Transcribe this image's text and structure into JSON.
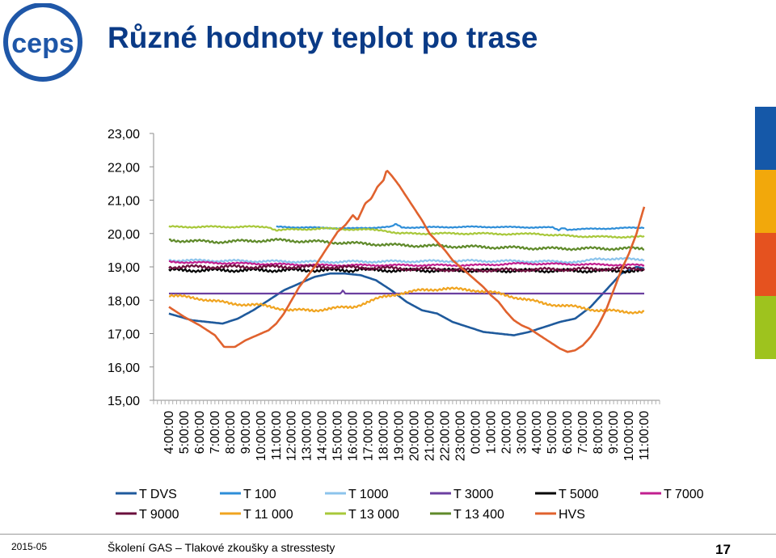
{
  "header": {
    "logo_text": "ceps",
    "title": "Různé hodnoty teplot po trase"
  },
  "footer": {
    "date": "2015-05",
    "course": "Školení GAS – Tlakové zkoušky a stresstesty",
    "page_number": "17"
  },
  "colors": {
    "title": "#0a3a86",
    "logo": "#1f57a8",
    "right_bar": [
      "#1558a8",
      "#f2a80b",
      "#e5521f",
      "#9ec31e"
    ]
  },
  "chart_data": {
    "type": "line",
    "ylim": [
      15,
      23
    ],
    "ytick_labels": [
      "15,00",
      "16,00",
      "17,00",
      "18,00",
      "19,00",
      "20,00",
      "21,00",
      "22,00",
      "23,00"
    ],
    "xtick_labels": [
      "4:00:00",
      "5:00:00",
      "6:00:00",
      "7:00:00",
      "8:00:00",
      "9:00:00",
      "10:00:00",
      "11:00:00",
      "12:00:00",
      "13:00:00",
      "14:00:00",
      "15:00:00",
      "16:00:00",
      "17:00:00",
      "18:00:00",
      "19:00:00",
      "20:00:00",
      "21:00:00",
      "22:00:00",
      "23:00:00",
      "0:00:00",
      "1:00:00",
      "2:00:00",
      "3:00:00",
      "4:00:00",
      "5:00:00",
      "6:00:00",
      "7:00:00",
      "8:00:00",
      "9:00:00",
      "10:00:00",
      "11:00:00"
    ],
    "grid": false,
    "legend_position": "bottom",
    "series": [
      {
        "name": "T DVS",
        "color": "#1f5a9c",
        "noise": 0.0,
        "points": [
          [
            0,
            17.6
          ],
          [
            1.5,
            17.4
          ],
          [
            2.5,
            17.35
          ],
          [
            3.5,
            17.3
          ],
          [
            4.5,
            17.45
          ],
          [
            5.5,
            17.7
          ],
          [
            6.5,
            18.0
          ],
          [
            7.5,
            18.3
          ],
          [
            8.5,
            18.5
          ],
          [
            9.5,
            18.7
          ],
          [
            10.5,
            18.8
          ],
          [
            11.5,
            18.8
          ],
          [
            12.5,
            18.75
          ],
          [
            13.5,
            18.6
          ],
          [
            14.5,
            18.3
          ],
          [
            15.5,
            17.95
          ],
          [
            16.5,
            17.7
          ],
          [
            17.5,
            17.6
          ],
          [
            18.5,
            17.35
          ],
          [
            19.5,
            17.2
          ],
          [
            20.5,
            17.05
          ],
          [
            21.5,
            17.0
          ],
          [
            22.5,
            16.95
          ],
          [
            23.5,
            17.05
          ],
          [
            24.5,
            17.2
          ],
          [
            25.5,
            17.35
          ],
          [
            26.5,
            17.45
          ],
          [
            27.5,
            17.8
          ],
          [
            28.5,
            18.3
          ],
          [
            29.5,
            18.8
          ],
          [
            30.5,
            19.0
          ],
          [
            31.0,
            18.95
          ]
        ]
      },
      {
        "name": "T 100",
        "color": "#2e8ed8",
        "noise": 0.02,
        "points": [
          [
            7,
            20.2
          ],
          [
            12,
            20.15
          ],
          [
            14.5,
            20.2
          ],
          [
            14.8,
            20.28
          ],
          [
            15.2,
            20.18
          ],
          [
            20,
            20.2
          ],
          [
            25,
            20.18
          ],
          [
            25.4,
            20.1
          ],
          [
            25.7,
            20.18
          ],
          [
            26,
            20.12
          ],
          [
            31,
            20.18
          ]
        ]
      },
      {
        "name": "T 1000",
        "color": "#8cc4ec",
        "noise": 0.04,
        "points": [
          [
            0,
            19.2
          ],
          [
            10,
            19.15
          ],
          [
            20,
            19.18
          ],
          [
            27,
            19.15
          ],
          [
            28,
            19.25
          ],
          [
            31,
            19.22
          ]
        ]
      },
      {
        "name": "T 3000",
        "color": "#6b3fa0",
        "noise": 0.0,
        "points": [
          [
            0,
            18.2
          ],
          [
            11.2,
            18.2
          ],
          [
            11.35,
            18.3
          ],
          [
            11.5,
            18.2
          ],
          [
            31,
            18.2
          ]
        ]
      },
      {
        "name": "T 5000",
        "color": "#000000",
        "noise": 0.06,
        "points": [
          [
            0,
            18.9
          ],
          [
            12,
            18.9
          ],
          [
            12.5,
            18.95
          ],
          [
            13,
            18.9
          ],
          [
            31,
            18.88
          ]
        ]
      },
      {
        "name": "T 7000",
        "color": "#c21f8f",
        "noise": 0.03,
        "points": [
          [
            0,
            19.15
          ],
          [
            10,
            19.05
          ],
          [
            20,
            19.05
          ],
          [
            23,
            19.1
          ],
          [
            31,
            19.05
          ]
        ]
      },
      {
        "name": "T 9000",
        "color": "#6b0f3c",
        "noise": 0.06,
        "points": [
          [
            0,
            19.0
          ],
          [
            10,
            19.0
          ],
          [
            20,
            18.9
          ],
          [
            31,
            18.95
          ]
        ]
      },
      {
        "name": "T 11 000",
        "color": "#f0a420",
        "noise": 0.05,
        "points": [
          [
            0,
            18.15
          ],
          [
            2,
            18.05
          ],
          [
            4,
            17.9
          ],
          [
            6,
            17.85
          ],
          [
            8,
            17.7
          ],
          [
            9.5,
            17.7
          ],
          [
            10.5,
            17.75
          ],
          [
            12,
            17.8
          ],
          [
            13,
            17.95
          ],
          [
            14,
            18.1
          ],
          [
            15,
            18.2
          ],
          [
            16.5,
            18.3
          ],
          [
            18,
            18.35
          ],
          [
            20,
            18.3
          ],
          [
            21.5,
            18.2
          ],
          [
            23,
            18.05
          ],
          [
            24.5,
            17.9
          ],
          [
            26.5,
            17.8
          ],
          [
            28,
            17.7
          ],
          [
            30,
            17.65
          ],
          [
            31,
            17.65
          ]
        ]
      },
      {
        "name": "T 13 000",
        "color": "#a8c83a",
        "noise": 0.03,
        "points": [
          [
            0,
            20.2
          ],
          [
            6.5,
            20.2
          ],
          [
            7,
            20.1
          ],
          [
            10,
            20.15
          ],
          [
            14,
            20.1
          ],
          [
            15,
            20.0
          ],
          [
            20,
            20.0
          ],
          [
            23,
            19.98
          ],
          [
            24,
            20.0
          ],
          [
            25,
            19.95
          ],
          [
            28,
            19.9
          ],
          [
            31,
            19.9
          ]
        ]
      },
      {
        "name": "T 13 400",
        "color": "#5f8a2a",
        "noise": 0.05,
        "points": [
          [
            0,
            19.8
          ],
          [
            3,
            19.75
          ],
          [
            7,
            19.8
          ],
          [
            10,
            19.75
          ],
          [
            15,
            19.65
          ],
          [
            20,
            19.6
          ],
          [
            25,
            19.55
          ],
          [
            31,
            19.55
          ]
        ]
      },
      {
        "name": "HVS",
        "color": "#e0622e",
        "noise": 0.0,
        "points": [
          [
            0,
            17.8
          ],
          [
            1,
            17.5
          ],
          [
            2,
            17.25
          ],
          [
            3,
            16.95
          ],
          [
            3.6,
            16.6
          ],
          [
            4.3,
            16.6
          ],
          [
            5,
            16.8
          ],
          [
            6,
            17.0
          ],
          [
            6.5,
            17.1
          ],
          [
            7,
            17.3
          ],
          [
            7.5,
            17.6
          ],
          [
            8,
            18.0
          ],
          [
            8.5,
            18.4
          ],
          [
            9,
            18.7
          ],
          [
            9.5,
            19.0
          ],
          [
            10,
            19.35
          ],
          [
            10.5,
            19.7
          ],
          [
            11,
            20.05
          ],
          [
            11.5,
            20.25
          ],
          [
            12,
            20.55
          ],
          [
            12.3,
            20.4
          ],
          [
            12.8,
            20.9
          ],
          [
            13.2,
            21.05
          ],
          [
            13.6,
            21.4
          ],
          [
            14,
            21.6
          ],
          [
            14.2,
            21.9
          ],
          [
            14.5,
            21.75
          ],
          [
            15,
            21.45
          ],
          [
            15.5,
            21.1
          ],
          [
            16,
            20.75
          ],
          [
            16.5,
            20.4
          ],
          [
            17,
            20.0
          ],
          [
            17.5,
            19.75
          ],
          [
            18,
            19.5
          ],
          [
            18.5,
            19.2
          ],
          [
            19,
            19.0
          ],
          [
            19.5,
            18.8
          ],
          [
            20,
            18.6
          ],
          [
            20.5,
            18.4
          ],
          [
            21,
            18.15
          ],
          [
            21.5,
            17.95
          ],
          [
            22,
            17.65
          ],
          [
            22.5,
            17.4
          ],
          [
            23,
            17.25
          ],
          [
            23.5,
            17.15
          ],
          [
            24,
            17.0
          ],
          [
            24.5,
            16.85
          ],
          [
            25,
            16.7
          ],
          [
            25.5,
            16.55
          ],
          [
            26,
            16.45
          ],
          [
            26.5,
            16.5
          ],
          [
            27,
            16.65
          ],
          [
            27.5,
            16.9
          ],
          [
            28,
            17.25
          ],
          [
            28.5,
            17.7
          ],
          [
            29,
            18.3
          ],
          [
            29.5,
            18.9
          ],
          [
            30,
            19.4
          ],
          [
            30.5,
            20.0
          ],
          [
            30.8,
            20.5
          ],
          [
            31,
            20.8
          ]
        ]
      }
    ]
  }
}
